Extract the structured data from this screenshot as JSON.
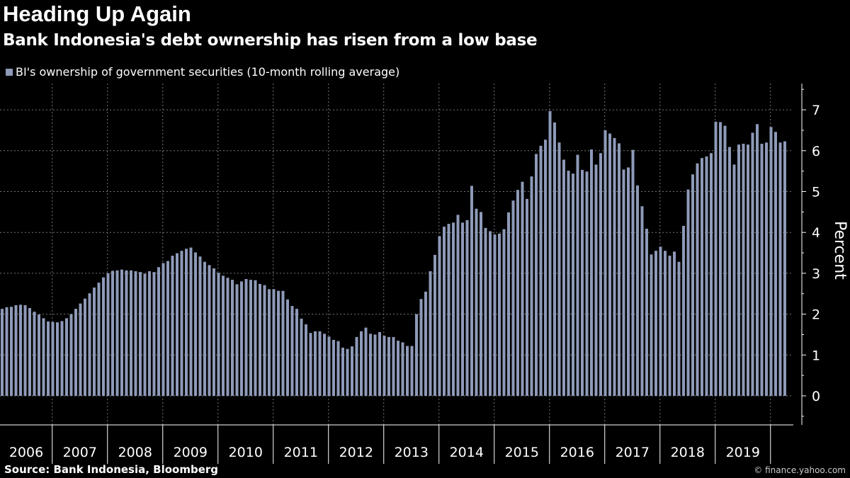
{
  "chart_data": {
    "type": "bar",
    "title": "Heading Up Again",
    "subtitle": "Bank Indonesia's debt ownership has risen from a low base",
    "ylabel": "Percent",
    "xlabel": "",
    "ylim": [
      -0.7,
      7.6
    ],
    "yticks": [
      0,
      1,
      2,
      3,
      4,
      5,
      6,
      7
    ],
    "x_tick_labels": [
      "2006",
      "2007",
      "2008",
      "2009",
      "2010",
      "2011",
      "2012",
      "2013",
      "2014",
      "2015",
      "2016",
      "2017",
      "2018",
      "2019"
    ],
    "grid": true,
    "legend_position": "top-left",
    "series": [
      {
        "name": "BI's ownership of government securities (10-month rolling average)",
        "color": "#8e9ab8",
        "values": [
          2.13,
          2.17,
          2.18,
          2.22,
          2.23,
          2.22,
          2.15,
          2.06,
          1.99,
          1.9,
          1.82,
          1.81,
          1.8,
          1.83,
          1.9,
          2.0,
          2.13,
          2.26,
          2.38,
          2.51,
          2.65,
          2.77,
          2.9,
          3.0,
          3.06,
          3.07,
          3.09,
          3.07,
          3.07,
          3.05,
          3.03,
          2.99,
          3.05,
          3.03,
          3.15,
          3.25,
          3.3,
          3.43,
          3.49,
          3.55,
          3.6,
          3.63,
          3.51,
          3.41,
          3.28,
          3.2,
          3.12,
          3.01,
          2.94,
          2.89,
          2.84,
          2.73,
          2.8,
          2.86,
          2.84,
          2.83,
          2.74,
          2.71,
          2.61,
          2.61,
          2.57,
          2.57,
          2.36,
          2.2,
          2.13,
          1.89,
          1.75,
          1.54,
          1.58,
          1.58,
          1.52,
          1.45,
          1.37,
          1.34,
          1.18,
          1.15,
          1.21,
          1.44,
          1.58,
          1.67,
          1.52,
          1.5,
          1.56,
          1.47,
          1.44,
          1.44,
          1.35,
          1.31,
          1.22,
          1.22,
          2.0,
          2.37,
          2.55,
          3.05,
          3.45,
          3.91,
          4.14,
          4.21,
          4.24,
          4.43,
          4.24,
          4.3,
          5.14,
          4.58,
          4.5,
          4.11,
          4.03,
          3.95,
          3.97,
          4.08,
          4.49,
          4.78,
          5.04,
          5.24,
          4.82,
          5.37,
          5.92,
          6.12,
          6.27,
          6.97,
          6.69,
          6.2,
          5.78,
          5.51,
          5.44,
          5.9,
          5.53,
          5.49,
          6.03,
          5.66,
          5.94,
          6.5,
          6.42,
          6.31,
          6.18,
          5.54,
          5.59,
          6.02,
          5.15,
          4.64,
          4.09,
          3.46,
          3.55,
          3.65,
          3.55,
          3.43,
          3.53,
          3.28,
          4.16,
          5.05,
          5.42,
          5.69,
          5.82,
          5.86,
          5.94,
          6.71,
          6.7,
          6.61,
          6.09,
          5.66,
          6.15,
          6.17,
          6.15,
          6.44,
          6.65,
          6.17,
          6.2,
          6.58,
          6.46,
          6.2,
          6.23
        ]
      }
    ]
  },
  "footer": {
    "source": "Source: Bank Indonesia, Bloomberg",
    "credit": "© finance.yahoo.com"
  }
}
